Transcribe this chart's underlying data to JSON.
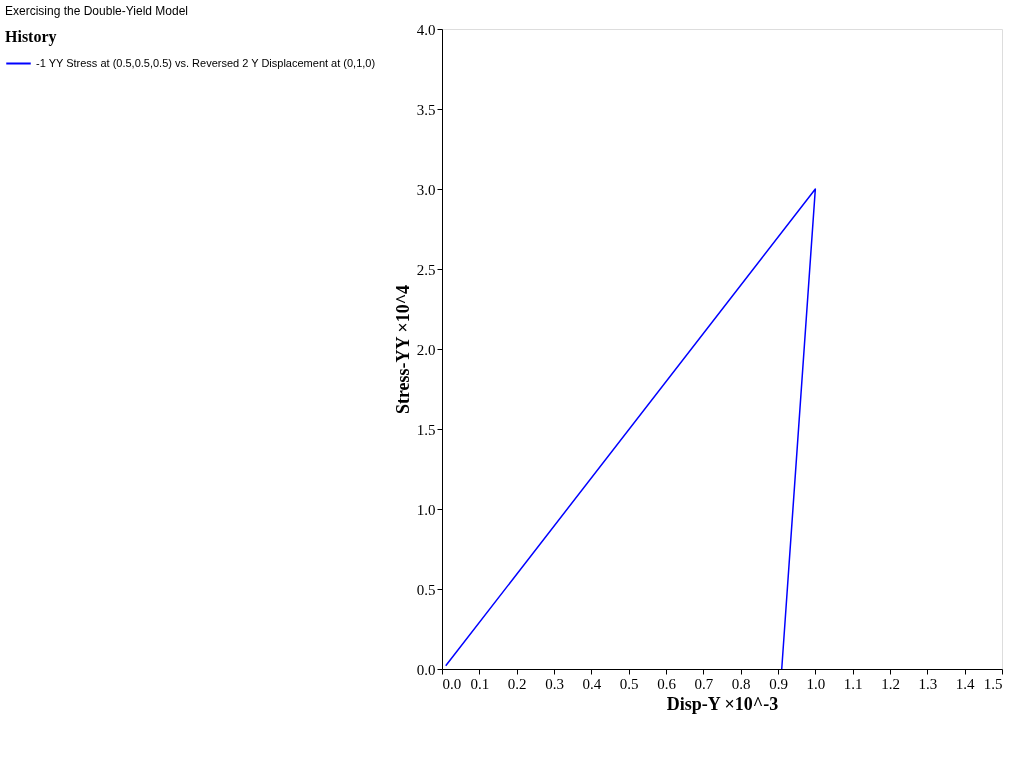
{
  "chart_data": {
    "type": "line",
    "title": "Exercising the Double-Yield Model",
    "xlabel": "Disp-Y ×10^-3",
    "ylabel": "Stress-YY ×10^4",
    "legend_title": "History",
    "legend": "left",
    "grid": false,
    "marker": "none",
    "line_style": "solid",
    "series": [
      {
        "name": "-1 YY Stress at (0.5,0.5,0.5) vs. Reversed 2 Y Displacement at (0,1,0)",
        "color": "#0000ff",
        "x": [
          0.01,
          1.0,
          0.91
        ],
        "values": [
          0.02,
          3.0,
          0.0
        ]
      }
    ],
    "xlim": [
      0,
      1.5
    ],
    "ylim": [
      0,
      4
    ],
    "xticks": [
      {
        "value": 0,
        "label": "0.0"
      },
      0.1,
      0.2,
      0.3,
      0.4,
      0.5,
      0.6,
      0.7,
      0.8,
      0.9,
      {
        "value": 1,
        "label": "1.0"
      },
      1.1,
      1.2,
      1.3,
      1.4,
      1.5
    ],
    "yticks": [
      {
        "value": 0,
        "label": "0.0"
      },
      0.5,
      {
        "value": 1,
        "label": "1.0"
      },
      1.5,
      {
        "value": 2,
        "label": "2.0"
      },
      2.5,
      {
        "value": 3,
        "label": "3.0"
      },
      3.5,
      {
        "value": 4,
        "label": "4.0"
      }
    ]
  }
}
